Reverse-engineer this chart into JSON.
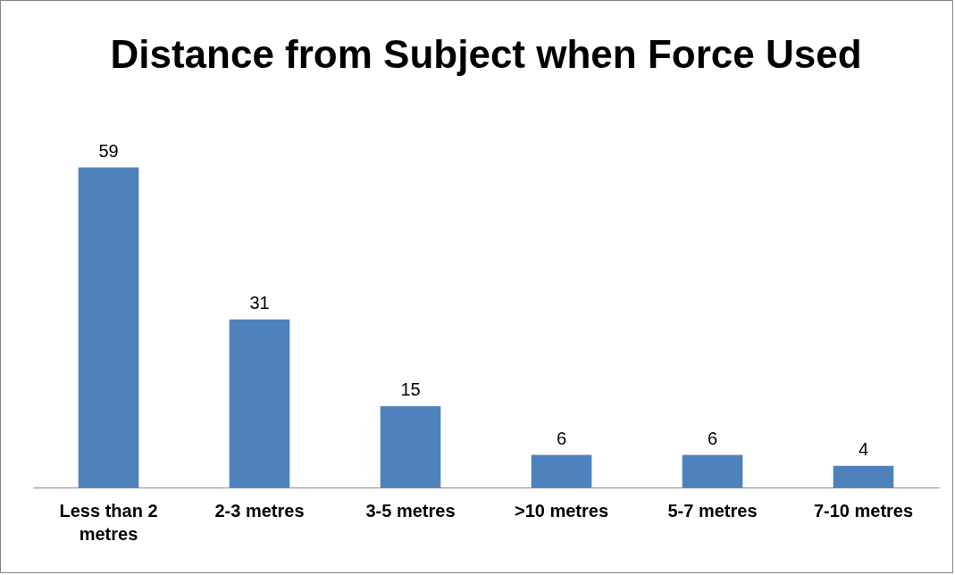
{
  "chart_data": {
    "type": "bar",
    "title": "Distance from Subject when Force Used",
    "categories": [
      "Less than 2 metres",
      "2-3 metres",
      "3-5 metres",
      ">10 metres",
      "5-7 metres",
      "7-10 metres"
    ],
    "values": [
      59,
      31,
      15,
      6,
      6,
      4
    ],
    "color": "#4f81bd",
    "data_labels": true
  }
}
